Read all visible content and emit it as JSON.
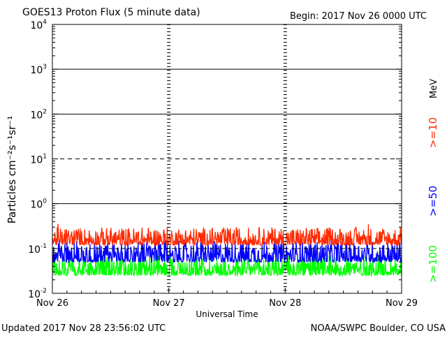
{
  "chart_data": {
    "type": "line",
    "title": "GOES13 Proton Flux (5 minute data)",
    "begin_label": "Begin: 2017 Nov 26 0000 UTC",
    "ylabel": "Particles cm⁻²s⁻¹sr⁻¹",
    "xlabel": "Universal Time",
    "y_scale": "log",
    "ylim": [
      0.01,
      10000
    ],
    "y_ticks": [
      {
        "base": "10",
        "exp": "4"
      },
      {
        "base": "10",
        "exp": "3"
      },
      {
        "base": "10",
        "exp": "2"
      },
      {
        "base": "10",
        "exp": "1"
      },
      {
        "base": "10",
        "exp": "0"
      },
      {
        "base": "10",
        "exp": "-1"
      },
      {
        "base": "10",
        "exp": "-2"
      }
    ],
    "x_ticks": [
      "Nov 26",
      "Nov 27",
      "Nov 28",
      "Nov 29"
    ],
    "xlim_days": [
      0,
      3
    ],
    "unit_label": "MeV",
    "series": [
      {
        "name": ">=10",
        "color": "#ff2a00",
        "typical_range": [
          0.12,
          0.3
        ]
      },
      {
        "name": ">=50",
        "color": "#0000ff",
        "typical_range": [
          0.05,
          0.15
        ]
      },
      {
        "name": ">=100",
        "color": "#00ff00",
        "typical_range": [
          0.025,
          0.07
        ]
      }
    ],
    "reference_lines": [
      {
        "value": 1000,
        "style": "solid"
      },
      {
        "value": 100,
        "style": "solid"
      },
      {
        "value": 10,
        "style": "dashed"
      },
      {
        "value": 1,
        "style": "solid"
      }
    ]
  },
  "footer": {
    "updated": "Updated 2017 Nov 28 23:56:02 UTC",
    "credit": "NOAA/SWPC Boulder, CO USA"
  },
  "colors": {
    "ten_mev": "#ff2a00",
    "fifty_mev": "#0000ff",
    "hundred_mev": "#00ff00"
  }
}
